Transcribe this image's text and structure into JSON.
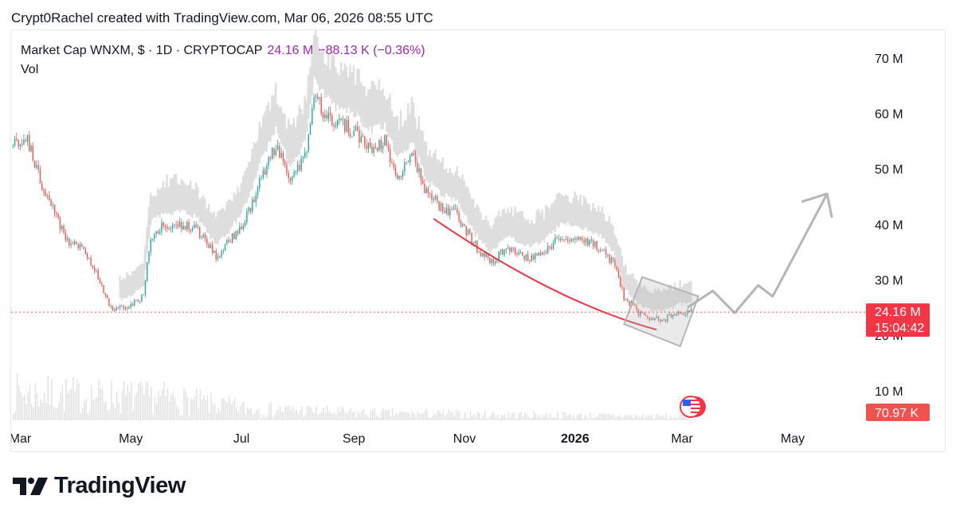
{
  "attribution": "Crypt0Rachel created with TradingView.com, Mar 06, 2026 08:55 UTC",
  "legend": {
    "symbol": "Market Cap WNXM, $ · 1D · CRYPTOCAP",
    "last": "24.16 M",
    "change": "−88.13 K (−0.36%)",
    "volume_label": "Vol"
  },
  "price_badge": {
    "value": "24.16 M",
    "countdown": "15:04:42"
  },
  "volume_badge": "70.97 K",
  "brand": "TradingView",
  "colors": {
    "up": "#26a69a",
    "down": "#ef5350",
    "volume": "#e0e0e0",
    "curve": "#e53945",
    "projection": "#b5b5b5",
    "badge": "#f23645",
    "legend_accent": "#9c27b0"
  },
  "icons": {
    "flag": "us-flag-icon",
    "logo": "tradingview-logo-icon"
  },
  "chart_data": {
    "type": "line",
    "title": "Market Cap WNXM, $ · 1D · CRYPTOCAP",
    "y_axis": {
      "ticks": [
        10,
        20,
        30,
        40,
        50,
        60,
        70
      ],
      "tick_labels": [
        "10 M",
        "20 M",
        "30 M",
        "40 M",
        "50 M",
        "60 M",
        "70 M"
      ],
      "unit": "M USD",
      "ylim": [
        2.5,
        75
      ],
      "position": "right"
    },
    "x_axis": {
      "ticks": [
        {
          "date": "2025-03-01",
          "label": "Mar"
        },
        {
          "date": "2025-05-01",
          "label": "May"
        },
        {
          "date": "2025-07-01",
          "label": "Jul"
        },
        {
          "date": "2025-09-01",
          "label": "Sep"
        },
        {
          "date": "2025-11-01",
          "label": "Nov"
        },
        {
          "date": "2026-01-01",
          "label": "2026"
        },
        {
          "date": "2026-03-01",
          "label": "Mar"
        },
        {
          "date": "2026-05-01",
          "label": "May"
        }
      ],
      "xlim": [
        "2025-02-24",
        "2026-06-10"
      ]
    },
    "series": [
      {
        "name": "Market Cap WNXM",
        "points": [
          {
            "x": "2025-02-25",
            "y": 54
          },
          {
            "x": "2025-03-05",
            "y": 55
          },
          {
            "x": "2025-03-12",
            "y": 48
          },
          {
            "x": "2025-03-20",
            "y": 42
          },
          {
            "x": "2025-03-28",
            "y": 36
          },
          {
            "x": "2025-04-05",
            "y": 36
          },
          {
            "x": "2025-04-12",
            "y": 31
          },
          {
            "x": "2025-04-20",
            "y": 25
          },
          {
            "x": "2025-04-28",
            "y": 25
          },
          {
            "x": "2025-05-08",
            "y": 27
          },
          {
            "x": "2025-05-12",
            "y": 38
          },
          {
            "x": "2025-05-20",
            "y": 40
          },
          {
            "x": "2025-06-01",
            "y": 40
          },
          {
            "x": "2025-06-10",
            "y": 38
          },
          {
            "x": "2025-06-17",
            "y": 34
          },
          {
            "x": "2025-06-25",
            "y": 37
          },
          {
            "x": "2025-07-05",
            "y": 42
          },
          {
            "x": "2025-07-12",
            "y": 49
          },
          {
            "x": "2025-07-20",
            "y": 54
          },
          {
            "x": "2025-07-28",
            "y": 48
          },
          {
            "x": "2025-08-05",
            "y": 52
          },
          {
            "x": "2025-08-10",
            "y": 63
          },
          {
            "x": "2025-08-16",
            "y": 60
          },
          {
            "x": "2025-08-22",
            "y": 58
          },
          {
            "x": "2025-09-01",
            "y": 57
          },
          {
            "x": "2025-09-10",
            "y": 54
          },
          {
            "x": "2025-09-18",
            "y": 55
          },
          {
            "x": "2025-09-25",
            "y": 49
          },
          {
            "x": "2025-10-03",
            "y": 52
          },
          {
            "x": "2025-10-12",
            "y": 45
          },
          {
            "x": "2025-10-20",
            "y": 43
          },
          {
            "x": "2025-10-28",
            "y": 42
          },
          {
            "x": "2025-11-05",
            "y": 37
          },
          {
            "x": "2025-11-15",
            "y": 33
          },
          {
            "x": "2025-11-25",
            "y": 36
          },
          {
            "x": "2025-12-05",
            "y": 34
          },
          {
            "x": "2025-12-15",
            "y": 35
          },
          {
            "x": "2025-12-25",
            "y": 38
          },
          {
            "x": "2026-01-05",
            "y": 37
          },
          {
            "x": "2026-01-15",
            "y": 36
          },
          {
            "x": "2026-01-22",
            "y": 33
          },
          {
            "x": "2026-01-28",
            "y": 27
          },
          {
            "x": "2026-02-05",
            "y": 24
          },
          {
            "x": "2026-02-12",
            "y": 23
          },
          {
            "x": "2026-02-20",
            "y": 23
          },
          {
            "x": "2026-02-28",
            "y": 24
          },
          {
            "x": "2026-03-06",
            "y": 24.16
          }
        ]
      }
    ],
    "volume_series": [
      {
        "x": "2025-03-01",
        "y": 0.55
      },
      {
        "x": "2025-04-15",
        "y": 0.5
      },
      {
        "x": "2025-05-20",
        "y": 0.45
      },
      {
        "x": "2025-07-01",
        "y": 0.25
      },
      {
        "x": "2025-09-01",
        "y": 0.15
      },
      {
        "x": "2025-11-01",
        "y": 0.12
      },
      {
        "x": "2026-01-01",
        "y": 0.1
      },
      {
        "x": "2026-03-06",
        "y": 0.07097
      }
    ],
    "annotations": {
      "rounding_curve": [
        {
          "x": "2025-10-15",
          "y": 41
        },
        {
          "x": "2025-11-20",
          "y": 33
        },
        {
          "x": "2026-01-01",
          "y": 25
        },
        {
          "x": "2026-02-15",
          "y": 21
        }
      ],
      "consolidation_box": [
        {
          "x": "2026-01-28",
          "y": 22
        },
        {
          "x": "2026-02-07",
          "y": 30.5
        },
        {
          "x": "2026-03-10",
          "y": 27
        },
        {
          "x": "2026-02-28",
          "y": 18
        }
      ],
      "projection_path": [
        {
          "x": "2026-03-04",
          "y": 25
        },
        {
          "x": "2026-03-18",
          "y": 28
        },
        {
          "x": "2026-03-30",
          "y": 24
        },
        {
          "x": "2026-04-12",
          "y": 29
        },
        {
          "x": "2026-04-20",
          "y": 27
        },
        {
          "x": "2026-05-20",
          "y": 45.5
        }
      ],
      "price_line": 24.16
    }
  }
}
